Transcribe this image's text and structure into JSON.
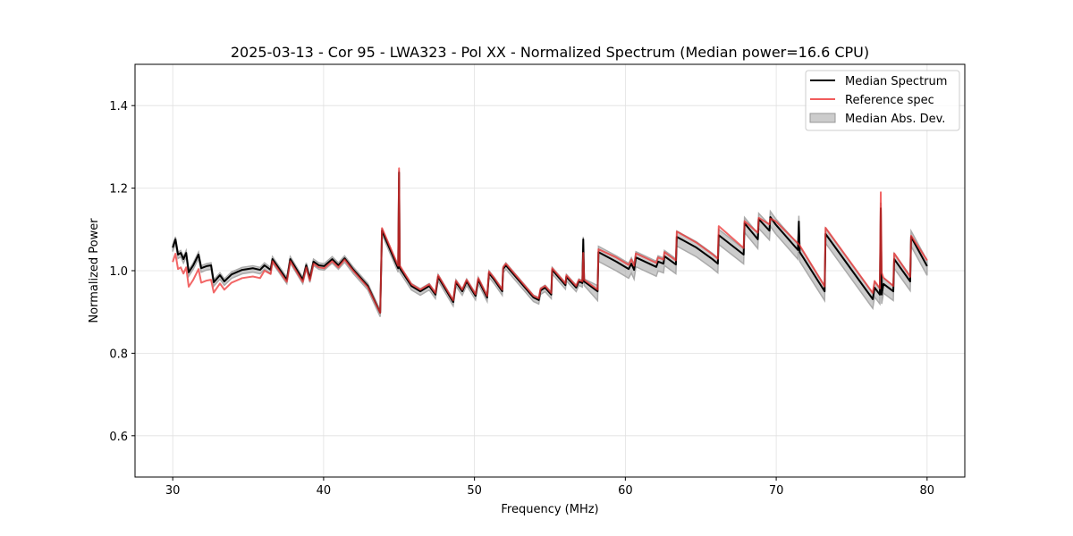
{
  "chart_data": {
    "type": "line",
    "title": "2025-03-13 - Cor 95 - LWA323 - Pol XX - Normalized Spectrum (Median power=16.6 CPU)",
    "xlabel": "Frequency (MHz)",
    "ylabel": "Normalized Power",
    "xlim": [
      27.5,
      82.5
    ],
    "ylim": [
      0.5,
      1.5
    ],
    "xticks": [
      30,
      40,
      50,
      60,
      70,
      80
    ],
    "yticks": [
      0.6,
      0.8,
      1.0,
      1.2,
      1.4
    ],
    "xtick_labels": [
      "30",
      "40",
      "50",
      "60",
      "70",
      "80"
    ],
    "ytick_labels": [
      "0.6",
      "0.8",
      "1.0",
      "1.2",
      "1.4"
    ],
    "grid": true,
    "legend_position": "top-right",
    "legend": [
      "Median Spectrum",
      "Reference spec",
      "Median Abs. Dev."
    ],
    "colors": {
      "median": "#000000",
      "reference": "#ee3333",
      "mad": "#aaaaaa"
    },
    "x": [
      30.0,
      30.18,
      30.35,
      30.53,
      30.71,
      30.89,
      31.06,
      31.36,
      31.71,
      31.89,
      32.24,
      32.54,
      32.72,
      33.13,
      33.42,
      33.9,
      34.6,
      35.31,
      35.79,
      36.08,
      36.49,
      36.61,
      37.56,
      37.79,
      38.62,
      38.85,
      39.09,
      39.33,
      39.68,
      40.04,
      40.57,
      40.98,
      41.39,
      41.98,
      42.93,
      43.75,
      43.87,
      44.94,
      45.0,
      45.05,
      45.82,
      46.41,
      47.0,
      47.41,
      47.59,
      48.59,
      48.77,
      49.19,
      49.48,
      50.07,
      50.25,
      50.84,
      50.96,
      51.31,
      51.84,
      51.9,
      52.08,
      53.91,
      54.26,
      54.38,
      54.68,
      55.09,
      55.15,
      56.03,
      56.09,
      56.74,
      56.92,
      57.15,
      57.21,
      57.27,
      58.16,
      58.22,
      59.4,
      60.22,
      60.4,
      60.58,
      60.7,
      62.05,
      62.17,
      62.53,
      62.59,
      63.35,
      63.41,
      64.71,
      65.77,
      66.13,
      66.19,
      67.84,
      67.9,
      68.78,
      68.84,
      69.55,
      69.61,
      69.96,
      71.44,
      71.5,
      71.56,
      73.21,
      73.27,
      76.4,
      76.52,
      76.87,
      76.93,
      76.99,
      77.11,
      77.76,
      77.82,
      78.88,
      78.94,
      80.0
    ],
    "series": [
      {
        "name": "Median Spectrum",
        "values": [
          1.056,
          1.076,
          1.039,
          1.043,
          1.028,
          1.043,
          0.996,
          1.013,
          1.039,
          1.006,
          1.011,
          1.013,
          0.972,
          0.989,
          0.974,
          0.991,
          1.002,
          1.006,
          1.002,
          1.013,
          1.002,
          1.028,
          0.978,
          1.028,
          0.978,
          1.013,
          0.981,
          1.022,
          1.013,
          1.011,
          1.028,
          1.013,
          1.03,
          1.002,
          0.963,
          0.898,
          1.097,
          1.006,
          1.238,
          1.006,
          0.963,
          0.95,
          0.963,
          0.942,
          0.985,
          0.924,
          0.972,
          0.95,
          0.974,
          0.939,
          0.978,
          0.935,
          0.994,
          0.978,
          0.95,
          1.004,
          1.013,
          0.935,
          0.929,
          0.952,
          0.959,
          0.942,
          1.002,
          0.965,
          0.985,
          0.959,
          0.974,
          0.97,
          1.076,
          0.974,
          0.95,
          1.045,
          1.022,
          1.004,
          1.017,
          1.002,
          1.032,
          1.009,
          1.022,
          1.017,
          1.035,
          1.015,
          1.082,
          1.056,
          1.028,
          1.017,
          1.086,
          1.039,
          1.115,
          1.076,
          1.125,
          1.097,
          1.13,
          1.112,
          1.05,
          1.119,
          1.045,
          0.95,
          1.089,
          0.931,
          0.959,
          0.942,
          1.151,
          0.942,
          0.968,
          0.95,
          1.028,
          0.974,
          1.082,
          1.011
        ]
      },
      {
        "name": "Reference spec",
        "values": [
          1.021,
          1.041,
          1.004,
          1.008,
          0.993,
          1.008,
          0.961,
          0.978,
          1.004,
          0.971,
          0.976,
          0.978,
          0.947,
          0.969,
          0.954,
          0.971,
          0.982,
          0.986,
          0.982,
          1.0,
          0.992,
          1.023,
          0.973,
          1.023,
          0.973,
          1.008,
          0.976,
          1.017,
          1.008,
          1.006,
          1.023,
          1.008,
          1.027,
          0.999,
          0.96,
          0.898,
          1.103,
          1.012,
          1.248,
          1.012,
          0.967,
          0.954,
          0.967,
          0.946,
          0.989,
          0.928,
          0.976,
          0.954,
          0.978,
          0.943,
          0.982,
          0.939,
          0.998,
          0.982,
          0.954,
          1.008,
          1.017,
          0.939,
          0.933,
          0.956,
          0.963,
          0.946,
          1.006,
          0.969,
          0.989,
          0.963,
          0.978,
          0.974,
          1.043,
          0.978,
          0.954,
          1.052,
          1.032,
          1.014,
          1.027,
          1.012,
          1.042,
          1.019,
          1.032,
          1.027,
          1.045,
          1.025,
          1.095,
          1.068,
          1.04,
          1.029,
          1.108,
          1.055,
          1.12,
          1.092,
          1.128,
          1.112,
          1.126,
          1.12,
          1.066,
          1.064,
          1.061,
          0.962,
          1.104,
          0.946,
          0.975,
          0.957,
          1.19,
          0.995,
          0.983,
          0.963,
          1.042,
          0.985,
          1.085,
          1.025
        ]
      }
    ],
    "mad_band": [
      {
        "from": 30,
        "to": 58,
        "value": 0.006
      },
      {
        "from": 58,
        "to": 80,
        "value": 0.014
      }
    ]
  }
}
